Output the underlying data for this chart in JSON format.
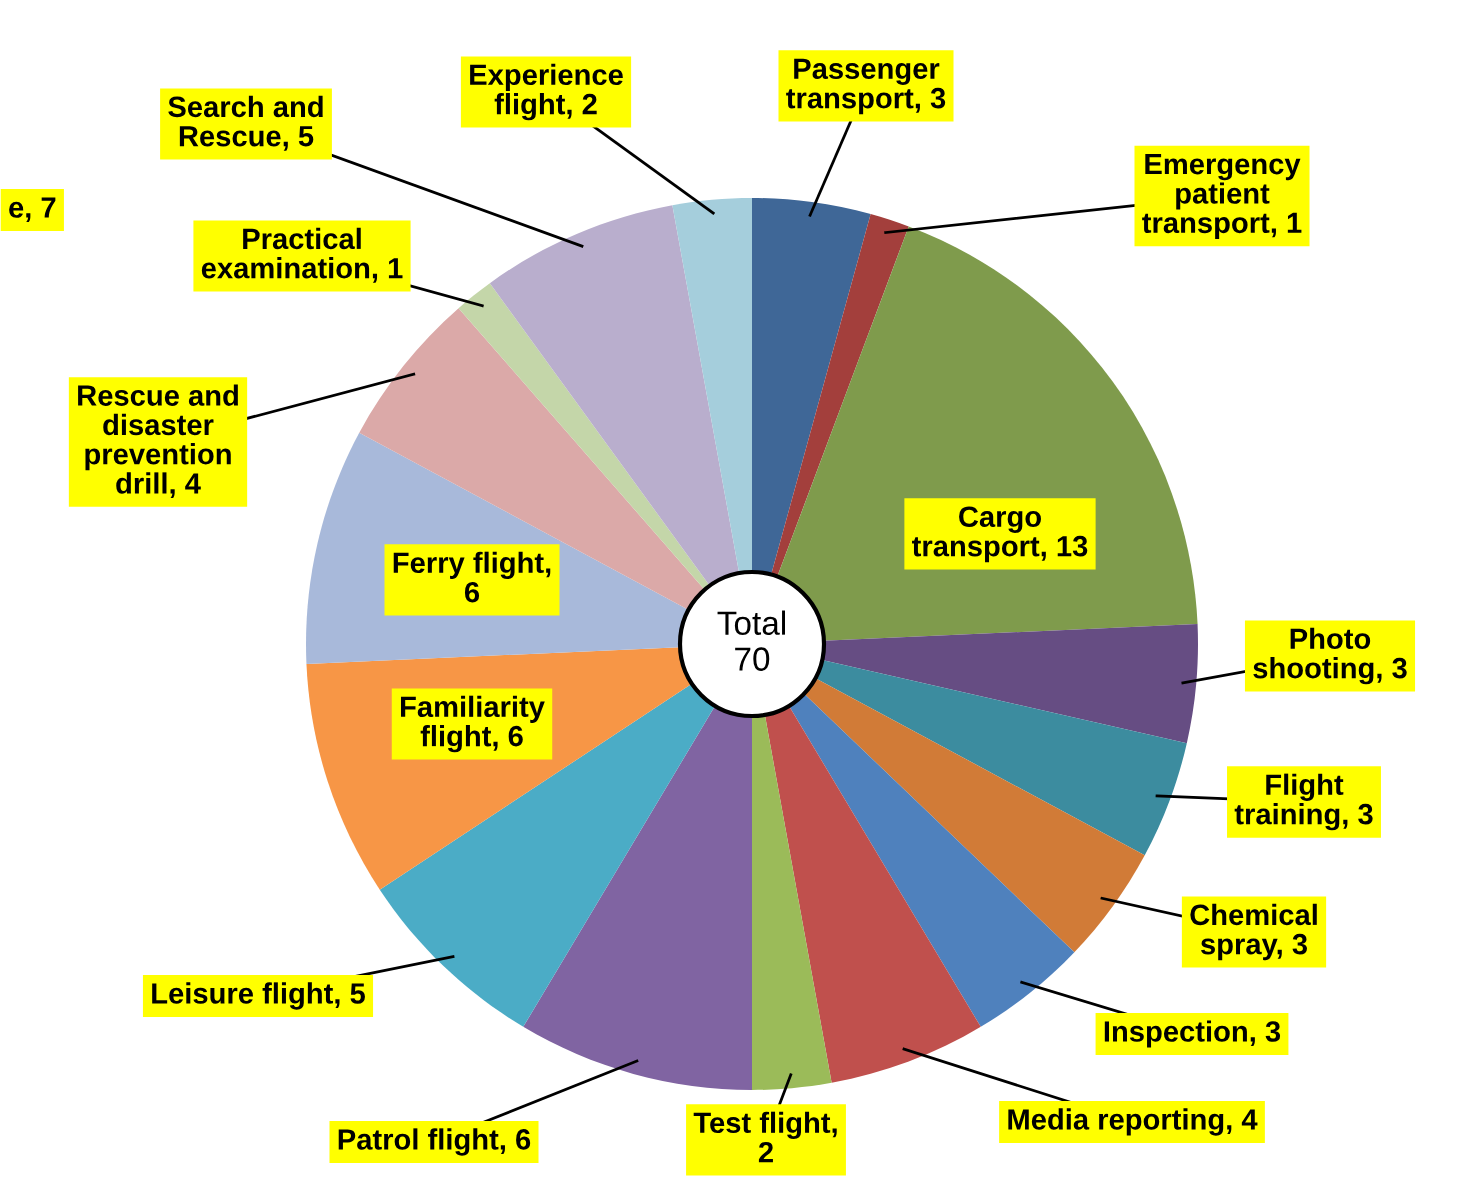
{
  "chart_data": {
    "type": "pie",
    "categories": [
      "Passenger\ntransport, 3",
      "Emergency\npatient\ntransport, 1",
      "Cargo\ntransport, 13",
      "Photo\nshooting, 3",
      "Flight\ntraining, 3",
      "Chemical\nspray, 3",
      "Inspection, 3",
      "Media reporting, 4",
      "Test flight,\n2",
      "Patrol flight, 6",
      "Leisure flight, 5",
      "Familiarity\nflight, 6",
      "Ferry flight,\n6",
      "Rescue and\ndisaster\nprevention\ndrill, 4",
      "Practical\nexamination, 1",
      "Search and\nRescue, 5",
      "Experience\nflight, 2"
    ],
    "values": [
      3,
      1,
      13,
      3,
      3,
      3,
      3,
      4,
      2,
      6,
      5,
      6,
      6,
      4,
      1,
      5,
      2
    ],
    "colors": [
      "#3f6797",
      "#a33f3c",
      "#7f9b4c",
      "#664d83",
      "#3c8c9f",
      "#d17b37",
      "#4f81bd",
      "#c0504d",
      "#9bbb59",
      "#8064a2",
      "#4bacc6",
      "#f79646",
      "#a8b9da",
      "#dba9a8",
      "#c4d6a9",
      "#b9aecd",
      "#a5cedc"
    ],
    "annotations": [
      "Total\n70",
      "e, 7"
    ]
  }
}
